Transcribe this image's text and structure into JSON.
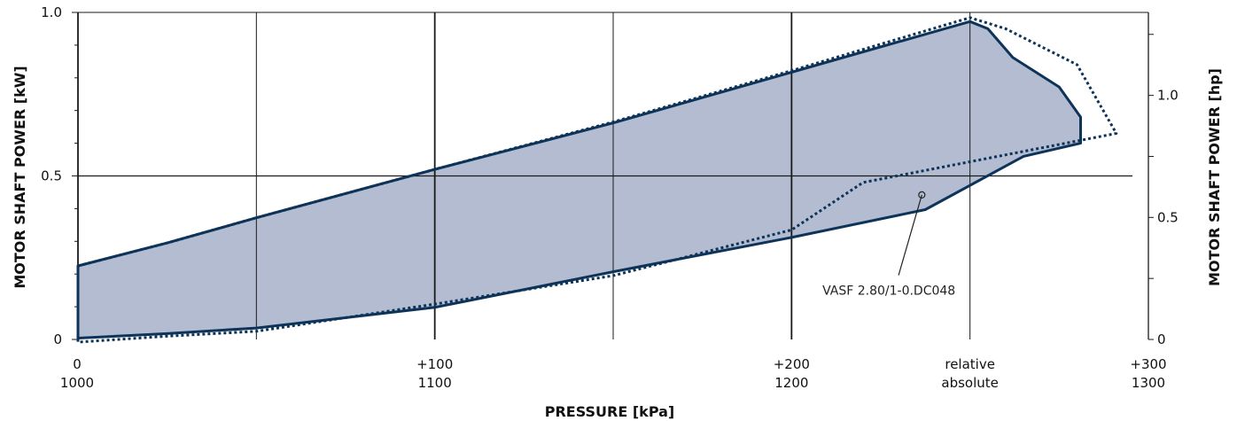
{
  "colors": {
    "fill": "#b3bcd0",
    "curve": "#0d3358",
    "grid": "#1a1a1a",
    "text": "#111111"
  },
  "chart_data": {
    "type": "area",
    "xlabel": "PRESSURE  [kPa]",
    "ylabel": "MOTOR SHAFT POWER  [kW]",
    "ylabel_right": "MOTOR SHAFT POWER  [hp]",
    "xlim": [
      0,
      300
    ],
    "ylim": [
      0,
      1.0
    ],
    "y2lim": [
      0,
      1.34
    ],
    "grid": true,
    "x_ticks_relative": [
      "0",
      "+100",
      "+200",
      "+300"
    ],
    "x_ticks_absolute": [
      "1000",
      "1100",
      "1200",
      "1300"
    ],
    "x_tick_values": [
      0,
      100,
      200,
      300
    ],
    "x_scale_labels": [
      "relative",
      "absolute"
    ],
    "y_ticks": [
      "0",
      "0.5",
      "1.0"
    ],
    "y_tick_values": [
      0,
      0.5,
      1.0
    ],
    "y2_ticks": [
      "0",
      "0.5",
      "1.0"
    ],
    "y2_tick_values": [
      0,
      0.5,
      1.0
    ],
    "annotation": {
      "text": "VASF 2.80/1-0.DC048",
      "point": [
        236.5,
        0.442
      ],
      "anchor": [
        228,
        0.18
      ]
    },
    "series": [
      {
        "style": "solid",
        "x": [
          0,
          25,
          50,
          100,
          150,
          200,
          250,
          255,
          262,
          275,
          281,
          281,
          265,
          237.5,
          200,
          150,
          100,
          50,
          25,
          0
        ],
        "y": [
          0.225,
          0.295,
          0.372,
          0.52,
          0.662,
          0.817,
          0.972,
          0.95,
          0.862,
          0.772,
          0.68,
          0.6,
          0.56,
          0.397,
          0.312,
          0.207,
          0.098,
          0.035,
          0.018,
          0.004
        ]
      },
      {
        "style": "dotted",
        "x": [
          0,
          25,
          50,
          100,
          150,
          200,
          250,
          260,
          280,
          291,
          220,
          200,
          150,
          100,
          50,
          25,
          0
        ],
        "y": [
          0.225,
          0.295,
          0.372,
          0.52,
          0.665,
          0.822,
          0.984,
          0.95,
          0.84,
          0.63,
          0.48,
          0.335,
          0.195,
          0.108,
          0.025,
          0.01,
          -0.008
        ]
      }
    ]
  }
}
